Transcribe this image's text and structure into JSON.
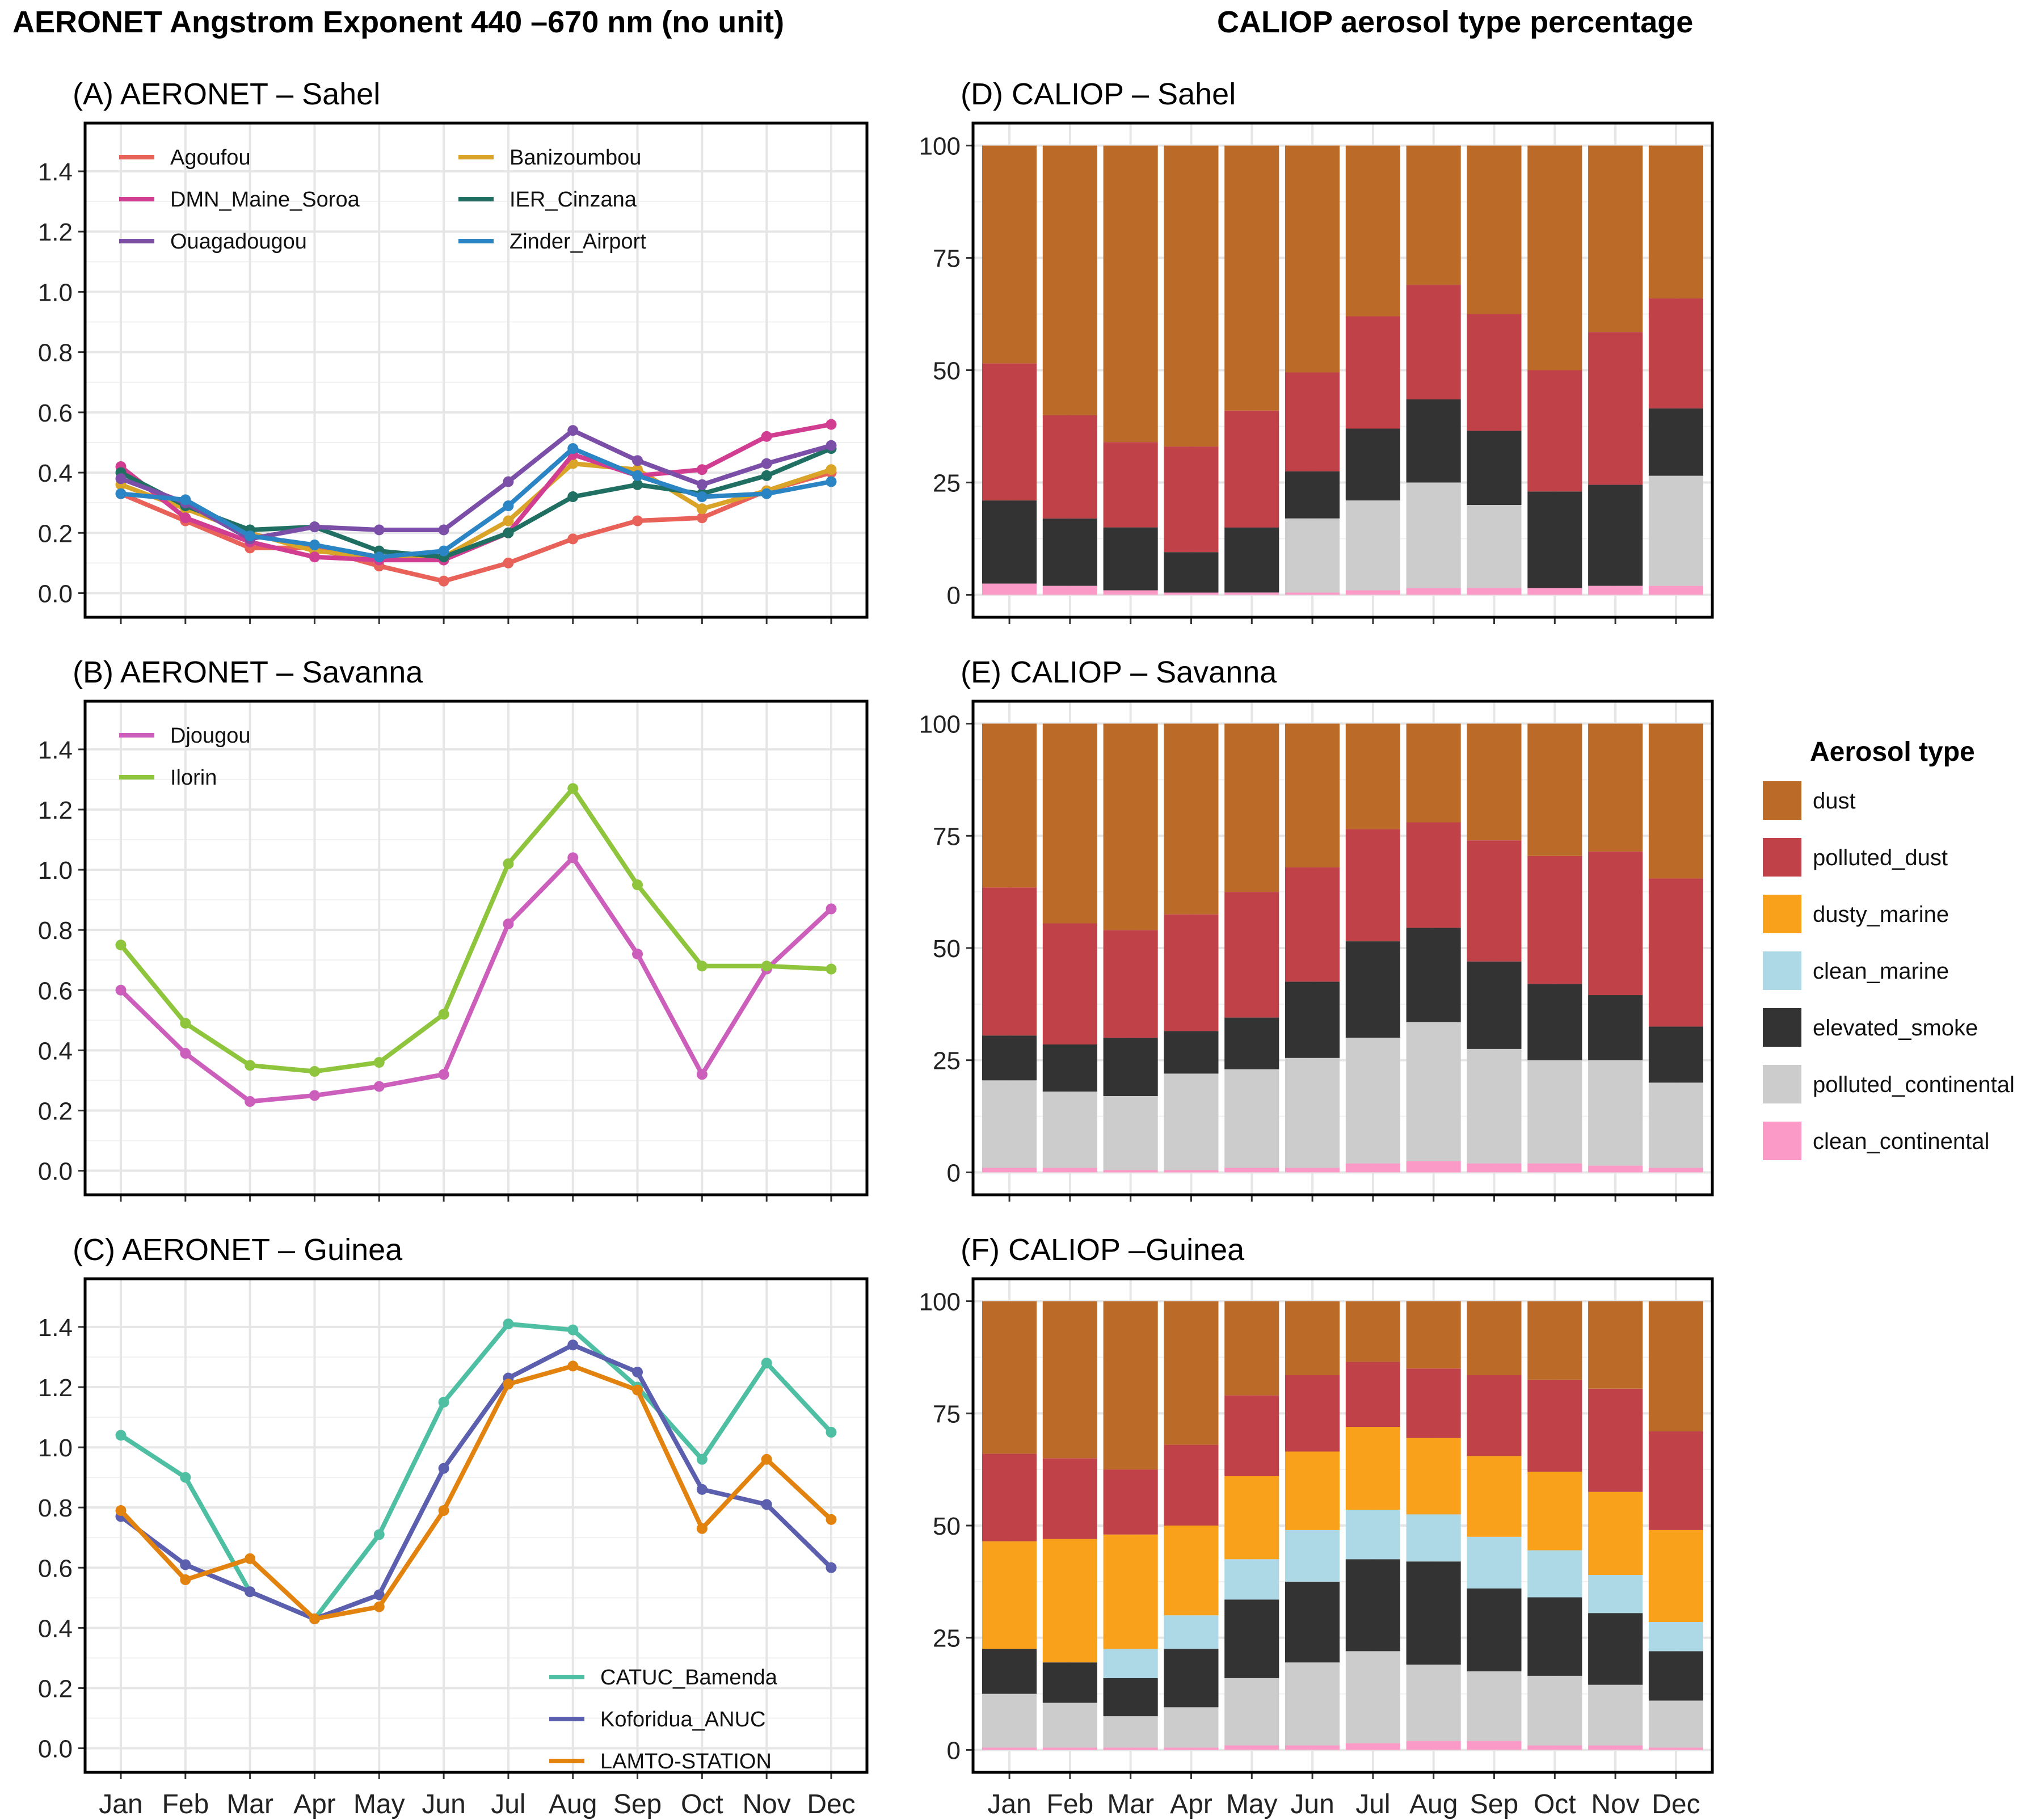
{
  "figure": {
    "left_title": "AERONET Angstrom Exponent 440 –670 nm (no unit)",
    "right_title": "CALIOP aerosol type percentage"
  },
  "months": [
    "Jan",
    "Feb",
    "Mar",
    "Apr",
    "May",
    "Jun",
    "Jul",
    "Aug",
    "Sep",
    "Oct",
    "Nov",
    "Dec"
  ],
  "chart_data": [
    {
      "id": "A",
      "type": "line",
      "title": "(A) AERONET –  Sahel",
      "xlabel": "",
      "ylabel": "",
      "ylim": [
        -0.08,
        1.56
      ],
      "yticks": [
        0.0,
        0.2,
        0.4,
        0.6,
        0.8,
        1.0,
        1.2,
        1.4
      ],
      "ytick_labels": [
        "0.0",
        "0.2",
        "0.4",
        "0.6",
        "0.8",
        "1.0",
        "1.2",
        "1.4"
      ],
      "show_x_labels": false,
      "legend_position": "top-left, 2 columns",
      "series": [
        {
          "name": "Agoufou",
          "color": "#e8625a",
          "values": [
            0.33,
            0.24,
            0.15,
            0.15,
            0.09,
            0.04,
            0.1,
            0.18,
            0.24,
            0.25,
            0.34,
            0.4
          ]
        },
        {
          "name": "Banizoumbou",
          "color": "#d9a427",
          "values": [
            0.36,
            0.28,
            0.2,
            0.14,
            0.12,
            0.12,
            0.24,
            0.43,
            0.41,
            0.28,
            0.34,
            0.41
          ]
        },
        {
          "name": "DMN_Maine_Soroa",
          "color": "#d13e91",
          "values": [
            0.42,
            0.25,
            0.17,
            0.12,
            0.11,
            0.11,
            0.2,
            0.46,
            0.39,
            0.41,
            0.52,
            0.56
          ]
        },
        {
          "name": "IER_Cinzana",
          "color": "#1f6f62",
          "values": [
            0.4,
            0.29,
            0.21,
            0.22,
            0.14,
            0.12,
            0.2,
            0.32,
            0.36,
            0.33,
            0.39,
            0.48
          ]
        },
        {
          "name": "Ouagadougou",
          "color": "#7b4fa8",
          "values": [
            0.38,
            0.3,
            0.18,
            0.22,
            0.21,
            0.21,
            0.37,
            0.54,
            0.44,
            0.36,
            0.43,
            0.49
          ]
        },
        {
          "name": "Zinder_Airport",
          "color": "#2b84c4",
          "values": [
            0.33,
            0.31,
            0.19,
            0.16,
            0.12,
            0.14,
            0.29,
            0.48,
            0.39,
            0.32,
            0.33,
            0.37
          ]
        }
      ]
    },
    {
      "id": "B",
      "type": "line",
      "title": "(B) AERONET – Savanna",
      "xlabel": "",
      "ylabel": "",
      "ylim": [
        -0.08,
        1.56
      ],
      "yticks": [
        0.0,
        0.2,
        0.4,
        0.6,
        0.8,
        1.0,
        1.2,
        1.4
      ],
      "ytick_labels": [
        "0.0",
        "0.2",
        "0.4",
        "0.6",
        "0.8",
        "1.0",
        "1.2",
        "1.4"
      ],
      "show_x_labels": false,
      "legend_position": "top-left",
      "series": [
        {
          "name": "Djougou",
          "color": "#cc5fbb",
          "values": [
            0.6,
            0.39,
            0.23,
            0.25,
            0.28,
            0.32,
            0.82,
            1.04,
            0.72,
            0.32,
            0.67,
            0.87
          ]
        },
        {
          "name": "Ilorin",
          "color": "#8fc43d",
          "values": [
            0.75,
            0.49,
            0.35,
            0.33,
            0.36,
            0.52,
            1.02,
            1.27,
            0.95,
            0.68,
            0.68,
            0.67
          ]
        }
      ]
    },
    {
      "id": "C",
      "type": "line",
      "title": "(C) AERONET – Guinea",
      "xlabel": "",
      "ylabel": "",
      "ylim": [
        -0.08,
        1.56
      ],
      "yticks": [
        0.0,
        0.2,
        0.4,
        0.6,
        0.8,
        1.0,
        1.2,
        1.4
      ],
      "ytick_labels": [
        "0.0",
        "0.2",
        "0.4",
        "0.6",
        "0.8",
        "1.0",
        "1.2",
        "1.4"
      ],
      "show_x_labels": true,
      "legend_position": "bottom-right",
      "series": [
        {
          "name": "CATUC_Bamenda",
          "color": "#4fbfa3",
          "values": [
            1.04,
            0.9,
            0.52,
            0.43,
            0.71,
            1.15,
            1.41,
            1.39,
            1.2,
            0.96,
            1.28,
            1.05
          ]
        },
        {
          "name": "Koforidua_ANUC",
          "color": "#5b5fae",
          "values": [
            0.77,
            0.61,
            0.52,
            0.43,
            0.51,
            0.93,
            1.23,
            1.34,
            1.25,
            0.86,
            0.81,
            0.6
          ]
        },
        {
          "name": "LAMTO-STATION",
          "color": "#e2830f",
          "values": [
            0.79,
            0.56,
            0.63,
            0.43,
            0.47,
            0.79,
            1.21,
            1.27,
            1.19,
            0.73,
            0.96,
            0.76
          ]
        }
      ]
    },
    {
      "id": "D",
      "type": "bar",
      "stacked": true,
      "title": "(D) CALIOP – Sahel",
      "xlabel": "",
      "ylabel": "",
      "ylim": [
        -5,
        105
      ],
      "yticks": [
        0,
        25,
        50,
        75,
        100
      ],
      "ytick_labels": [
        "0",
        "25",
        "50",
        "75",
        "100"
      ],
      "show_x_labels": false,
      "series": [
        {
          "name": "clean_continental",
          "color": "#fb9ac6",
          "values": [
            2.5,
            2,
            1,
            0.5,
            0.5,
            0.5,
            1,
            1.5,
            1.5,
            1.5,
            2,
            2
          ]
        },
        {
          "name": "polluted_continental",
          "color": "#cccccc",
          "values": [
            0,
            0,
            0,
            0,
            0,
            16.5,
            20,
            23.5,
            18.5,
            0,
            0,
            24.5
          ]
        },
        {
          "name": "elevated_smoke",
          "color": "#333333",
          "values": [
            18.5,
            15,
            14,
            9,
            14.5,
            10.5,
            16,
            18.5,
            16.5,
            21.5,
            22.5,
            15
          ]
        },
        {
          "name": "clean_marine",
          "color": "#add8e6",
          "values": [
            0,
            0,
            0,
            0,
            0,
            0,
            0,
            0,
            0,
            0,
            0,
            0
          ]
        },
        {
          "name": "dusty_marine",
          "color": "#f9a11b",
          "values": [
            0,
            0,
            0,
            0,
            0,
            0,
            0,
            0,
            0,
            0,
            0,
            0
          ]
        },
        {
          "name": "polluted_dust",
          "color": "#c04147",
          "values": [
            30.5,
            23,
            19,
            23.5,
            26,
            22,
            25,
            25.5,
            26,
            27,
            34,
            24.5
          ]
        },
        {
          "name": "dust",
          "color": "#bc6a28",
          "values": [
            48.5,
            60,
            66,
            67,
            59,
            50.5,
            38,
            31,
            37.5,
            50,
            41.5,
            34
          ]
        }
      ]
    },
    {
      "id": "E",
      "type": "bar",
      "stacked": true,
      "title": "(E) CALIOP – Savanna",
      "xlabel": "",
      "ylabel": "",
      "ylim": [
        -5,
        105
      ],
      "yticks": [
        0,
        25,
        50,
        75,
        100
      ],
      "ytick_labels": [
        "0",
        "25",
        "50",
        "75",
        "100"
      ],
      "show_x_labels": false,
      "series": [
        {
          "name": "clean_continental",
          "color": "#fb9ac6",
          "values": [
            1,
            1,
            0.5,
            0.5,
            1,
            1,
            2,
            2.5,
            2,
            2,
            1.5,
            1
          ]
        },
        {
          "name": "polluted_continental",
          "color": "#cccccc",
          "values": [
            19.5,
            17,
            16.5,
            21.5,
            22,
            24.5,
            28,
            31,
            25.5,
            23,
            23.5,
            19
          ]
        },
        {
          "name": "elevated_smoke",
          "color": "#333333",
          "values": [
            10,
            10.5,
            13,
            9.5,
            11.5,
            17,
            21.5,
            21,
            19.5,
            17,
            14.5,
            12.5
          ]
        },
        {
          "name": "clean_marine",
          "color": "#add8e6",
          "values": [
            0,
            0,
            0,
            0,
            0,
            0,
            0,
            0,
            0,
            0,
            0,
            0
          ]
        },
        {
          "name": "dusty_marine",
          "color": "#f9a11b",
          "values": [
            0,
            0,
            0,
            0,
            0,
            0,
            0,
            0,
            0,
            0,
            0,
            0
          ]
        },
        {
          "name": "polluted_dust",
          "color": "#c04147",
          "values": [
            33,
            27,
            24,
            26,
            28,
            25.5,
            25,
            23.5,
            27,
            28.5,
            32,
            33
          ]
        },
        {
          "name": "dust",
          "color": "#bc6a28",
          "values": [
            36.5,
            44.5,
            46,
            42.5,
            37.5,
            32,
            23.5,
            22,
            26,
            29.5,
            28.5,
            34.5
          ]
        }
      ]
    },
    {
      "id": "F",
      "type": "bar",
      "stacked": true,
      "title": "(F) CALIOP –Guinea",
      "xlabel": "",
      "ylabel": "",
      "ylim": [
        -5,
        105
      ],
      "yticks": [
        0,
        25,
        50,
        75,
        100
      ],
      "ytick_labels": [
        "0",
        "25",
        "50",
        "75",
        "100"
      ],
      "show_x_labels": true,
      "series": [
        {
          "name": "clean_continental",
          "color": "#fb9ac6",
          "values": [
            0.5,
            0.5,
            0.5,
            0.5,
            1,
            1,
            1.5,
            2,
            2,
            1,
            1,
            0.5
          ]
        },
        {
          "name": "polluted_continental",
          "color": "#cccccc",
          "values": [
            12,
            10,
            7,
            9,
            15,
            18.5,
            20.5,
            17,
            15.5,
            15.5,
            13.5,
            10.5
          ]
        },
        {
          "name": "elevated_smoke",
          "color": "#333333",
          "values": [
            10,
            9,
            8.5,
            13,
            17.5,
            18,
            20.5,
            23,
            18.5,
            17.5,
            16,
            11
          ]
        },
        {
          "name": "clean_marine",
          "color": "#add8e6",
          "values": [
            0,
            0,
            6.5,
            7.5,
            9,
            11.5,
            11,
            10.5,
            11.5,
            10.5,
            8.5,
            6.5
          ]
        },
        {
          "name": "dusty_marine",
          "color": "#f9a11b",
          "values": [
            24,
            27.5,
            25.5,
            20,
            18.5,
            17.5,
            18.5,
            17,
            18,
            17.5,
            18.5,
            20.5
          ]
        },
        {
          "name": "polluted_dust",
          "color": "#c04147",
          "values": [
            19.5,
            18,
            14.5,
            18,
            18,
            17,
            14.5,
            15.5,
            18,
            20.5,
            23,
            22
          ]
        },
        {
          "name": "dust",
          "color": "#bc6a28",
          "values": [
            34,
            35,
            37.5,
            32,
            21,
            16.5,
            13.5,
            15,
            16.5,
            17.5,
            19.5,
            29
          ]
        }
      ]
    }
  ],
  "legend": {
    "title": "Aerosol type",
    "items": [
      {
        "name": "dust",
        "color": "#bc6a28"
      },
      {
        "name": "polluted_dust",
        "color": "#c04147"
      },
      {
        "name": "dusty_marine",
        "color": "#f9a11b"
      },
      {
        "name": "clean_marine",
        "color": "#add8e6"
      },
      {
        "name": "elevated_smoke",
        "color": "#333333"
      },
      {
        "name": "polluted_continental",
        "color": "#cccccc"
      },
      {
        "name": "clean_continental",
        "color": "#fb9ac6"
      }
    ]
  }
}
